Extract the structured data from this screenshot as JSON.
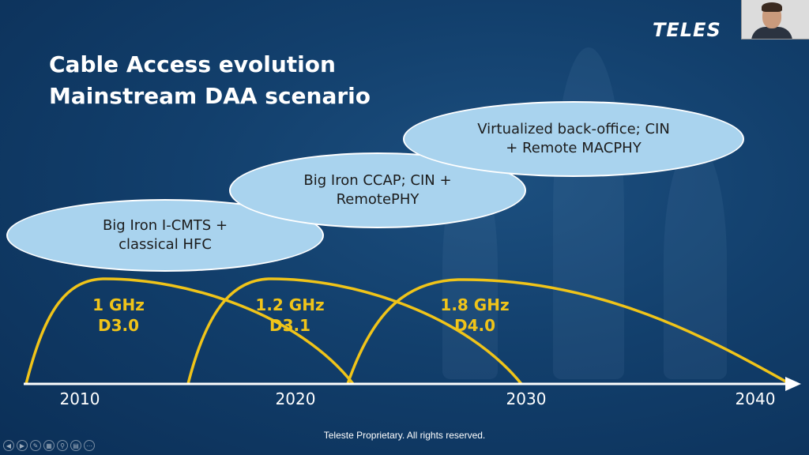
{
  "slide": {
    "title_line1": "Cable Access evolution",
    "title_line2": "Mainstream DAA scenario",
    "logo": "TELES",
    "footer": "Teleste Proprietary. All rights reserved."
  },
  "bubbles": [
    {
      "line1": "Big Iron I-CMTS +",
      "line2": "classical HFC"
    },
    {
      "line1": "Big Iron CCAP; CIN +",
      "line2": "RemotePHY"
    },
    {
      "line1": "Virtualized back-office; CIN",
      "line2": "+ Remote MACPHY"
    }
  ],
  "generations": [
    {
      "freq": "1 GHz",
      "docsis": "D3.0"
    },
    {
      "freq": "1.2 GHz",
      "docsis": "D3.1"
    },
    {
      "freq": "1.8 GHz",
      "docsis": "D4.0"
    }
  ],
  "timeline": {
    "years": [
      "2010",
      "2020",
      "2030",
      "2040"
    ]
  },
  "controls": [
    "prev-icon",
    "next-icon",
    "pen-icon",
    "slides-icon",
    "zoom-icon",
    "subtitles-icon",
    "more-icon"
  ],
  "colors": {
    "background": "#123f6c",
    "bubble": "#a9d3ee",
    "curve": "#f0c419",
    "text": "#ffffff"
  }
}
